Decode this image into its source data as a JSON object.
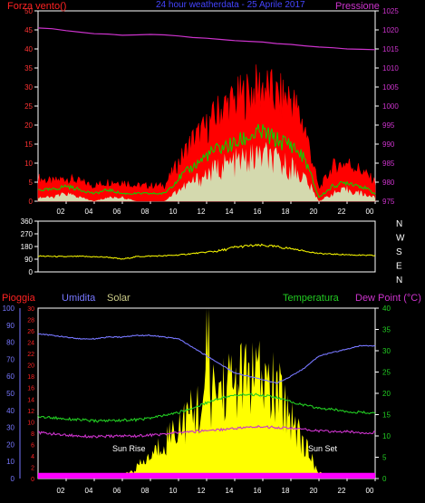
{
  "colors": {
    "background": "#000000",
    "frame": "#ffffff",
    "wind_gust": "#ff0000",
    "wind_avg": "#00dd00",
    "wind_min": "#ccffcc",
    "pressure": "#cc33cc",
    "direction": "#ffff00",
    "humidity": "#7777ff",
    "solar": "#ffff00",
    "temperature": "#22cc22",
    "dew_point": "#cc33cc",
    "rain": "#ff00ff",
    "labels": "#ffffff"
  },
  "chart_data": [
    {
      "type": "line",
      "title": "24 hour weatherdata - 25 Aprile 2017",
      "ylabel_left": "Forza vento()",
      "ylabel_right": "Pressione",
      "ylim_left": [
        0,
        50
      ],
      "ylim_right": [
        975,
        1025
      ],
      "yticks_left": [
        "0",
        "5",
        "10",
        "15",
        "20",
        "25",
        "30",
        "35",
        "40",
        "45",
        "50"
      ],
      "yticks_right": [
        "975",
        "980",
        "985",
        "990",
        "995",
        "1000",
        "1005",
        "1010",
        "1015",
        "1020",
        "1025"
      ],
      "xticks": [
        "02",
        "04",
        "06",
        "08",
        "10",
        "12",
        "14",
        "16",
        "18",
        "20",
        "22",
        "00"
      ],
      "x": [
        0,
        1,
        2,
        3,
        4,
        5,
        6,
        7,
        8,
        9,
        10,
        11,
        12,
        13,
        14,
        15,
        16,
        17,
        18,
        19,
        20,
        21,
        22,
        23,
        24
      ],
      "series": [
        {
          "key": "gust",
          "values": [
            6,
            5,
            6,
            5,
            4,
            5,
            5,
            4,
            4,
            4,
            10,
            16,
            19,
            24,
            26,
            28,
            30,
            27,
            27,
            19,
            3,
            9,
            10,
            8,
            5
          ]
        },
        {
          "key": "avg",
          "values": [
            3,
            3,
            4,
            3,
            2,
            3,
            2,
            2,
            2,
            2,
            6,
            9,
            12,
            14,
            15,
            17,
            18,
            16,
            15,
            11,
            1,
            4,
            5,
            4,
            2
          ]
        },
        {
          "key": "min",
          "values": [
            1,
            1,
            2,
            1,
            0,
            1,
            1,
            0,
            0,
            0,
            3,
            5,
            7,
            9,
            10,
            11,
            12,
            10,
            9,
            6,
            0,
            2,
            3,
            2,
            1
          ]
        },
        {
          "key": "pressure",
          "values": [
            1020.5,
            1020.3,
            1019.8,
            1019.4,
            1019.0,
            1018.9,
            1018.6,
            1018.7,
            1018.8,
            1018.7,
            1018.4,
            1018.0,
            1017.8,
            1017.5,
            1017.2,
            1017.0,
            1016.8,
            1016.4,
            1016.2,
            1015.8,
            1015.5,
            1015.3,
            1015.0,
            1014.9,
            1014.8
          ]
        }
      ]
    },
    {
      "type": "line",
      "ylim": [
        0,
        360
      ],
      "yticks": [
        "0",
        "90",
        "180",
        "270",
        "360"
      ],
      "compass": [
        "N",
        "W",
        "S",
        "E",
        "N"
      ],
      "xticks": [
        "02",
        "04",
        "06",
        "08",
        "10",
        "12",
        "14",
        "16",
        "18",
        "20",
        "22",
        "00"
      ],
      "x": [
        0,
        1,
        2,
        3,
        4,
        5,
        6,
        7,
        8,
        9,
        10,
        11,
        12,
        13,
        14,
        15,
        16,
        17,
        18,
        19,
        20,
        21,
        22,
        23,
        24
      ],
      "series": [
        {
          "key": "direction",
          "values": [
            112,
            110,
            108,
            110,
            107,
            104,
            90,
            108,
            112,
            114,
            120,
            130,
            140,
            150,
            175,
            185,
            188,
            178,
            165,
            148,
            130,
            126,
            122,
            118,
            116
          ]
        }
      ]
    },
    {
      "type": "line",
      "ylabel_left_rain": "Pioggia",
      "ylabel_left_humidity": "Umidita",
      "ylabel_solar": "Solar",
      "ylabel_temp": "Temperatura",
      "ylabel_dew": "Dew Point (°C)",
      "ylim_humidity": [
        0,
        100
      ],
      "ylim_rain": [
        0,
        30
      ],
      "ylim_temp": [
        0,
        40
      ],
      "yticks_humidity": [
        "0",
        "10",
        "20",
        "30",
        "40",
        "50",
        "60",
        "70",
        "80",
        "90",
        "100"
      ],
      "yticks_rain": [
        "0",
        "2",
        "4",
        "6",
        "8",
        "10",
        "12",
        "14",
        "16",
        "18",
        "20",
        "22",
        "24",
        "26",
        "28",
        "30"
      ],
      "yticks_temp": [
        "0",
        "5",
        "10",
        "15",
        "20",
        "25",
        "30",
        "35",
        "40"
      ],
      "xticks": [
        "02",
        "04",
        "06",
        "08",
        "10",
        "12",
        "14",
        "16",
        "18",
        "20",
        "22",
        "00"
      ],
      "x": [
        0,
        1,
        2,
        3,
        4,
        5,
        6,
        7,
        8,
        9,
        10,
        11,
        12,
        13,
        14,
        15,
        16,
        17,
        18,
        19,
        20,
        21,
        22,
        23,
        24
      ],
      "annotations": {
        "sunrise": "Sun Rise",
        "sunset": "Sun Set"
      },
      "series": [
        {
          "key": "humidity",
          "values": [
            85,
            84,
            83,
            82,
            82,
            83,
            83,
            84,
            84,
            83,
            82,
            77,
            72,
            67,
            62,
            60,
            58,
            56,
            60,
            65,
            72,
            74,
            76,
            78,
            78
          ]
        },
        {
          "key": "temperature",
          "values": [
            14.5,
            14.3,
            14.0,
            13.8,
            13.5,
            13.6,
            13.7,
            13.8,
            14.2,
            14.8,
            15.5,
            16.5,
            17.8,
            18.9,
            19.5,
            19.8,
            19.6,
            19.0,
            18.0,
            17.2,
            16.5,
            16.2,
            15.8,
            15.5,
            15.3
          ]
        },
        {
          "key": "dewpoint",
          "values": [
            10.8,
            10.5,
            10.2,
            10.0,
            9.8,
            9.9,
            10.0,
            10.0,
            10.2,
            10.4,
            10.8,
            11.0,
            11.3,
            11.5,
            11.8,
            12.0,
            12.2,
            12.0,
            11.8,
            11.5,
            11.2,
            11.0,
            11.0,
            10.8,
            10.8
          ]
        },
        {
          "key": "solar",
          "values": [
            0,
            0,
            0,
            0,
            0,
            0,
            0.5,
            2,
            4,
            7,
            10,
            12,
            15,
            17,
            18,
            19,
            18,
            16,
            12,
            6,
            1,
            0,
            0,
            0,
            0
          ]
        },
        {
          "key": "rain",
          "values": [
            1,
            1,
            1,
            1,
            1,
            1,
            1,
            1,
            1,
            1,
            1,
            1,
            1,
            1,
            1,
            1,
            1,
            1,
            1,
            1,
            1,
            1,
            1,
            1,
            1
          ]
        }
      ]
    }
  ]
}
